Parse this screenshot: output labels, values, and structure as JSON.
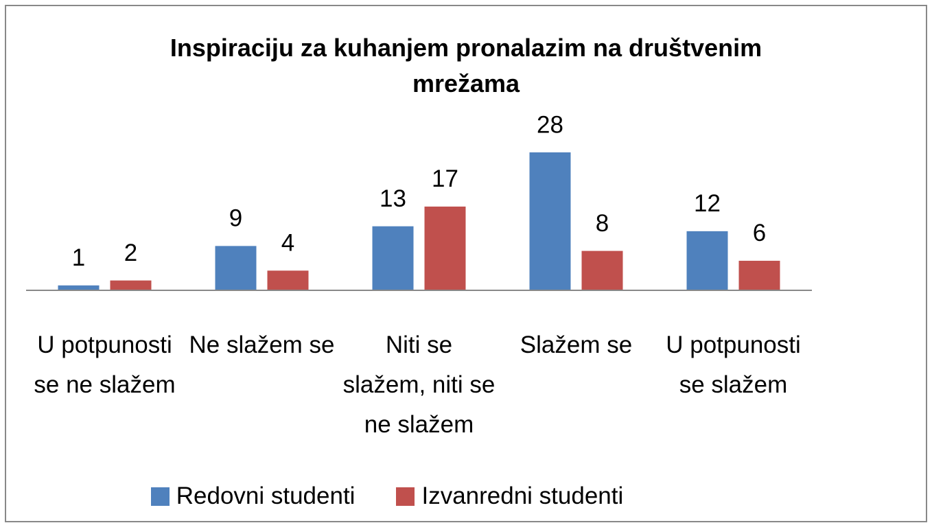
{
  "chart_data": {
    "type": "bar",
    "title": "Inspiraciju za kuhanjem pronalazim na društvenim mrežama",
    "categories": [
      "U potpunosti se ne slažem",
      "Ne slažem se",
      "Niti se slažem, niti se ne slažem",
      "Slažem se",
      "U potpunosti se slažem"
    ],
    "series": [
      {
        "name": "Redovni studenti",
        "color": "#4f81bd",
        "values": [
          1,
          9,
          13,
          28,
          12
        ]
      },
      {
        "name": "Izvanredni studenti",
        "color": "#c0504d",
        "values": [
          2,
          4,
          17,
          8,
          6
        ]
      }
    ],
    "legend": "bottom"
  }
}
